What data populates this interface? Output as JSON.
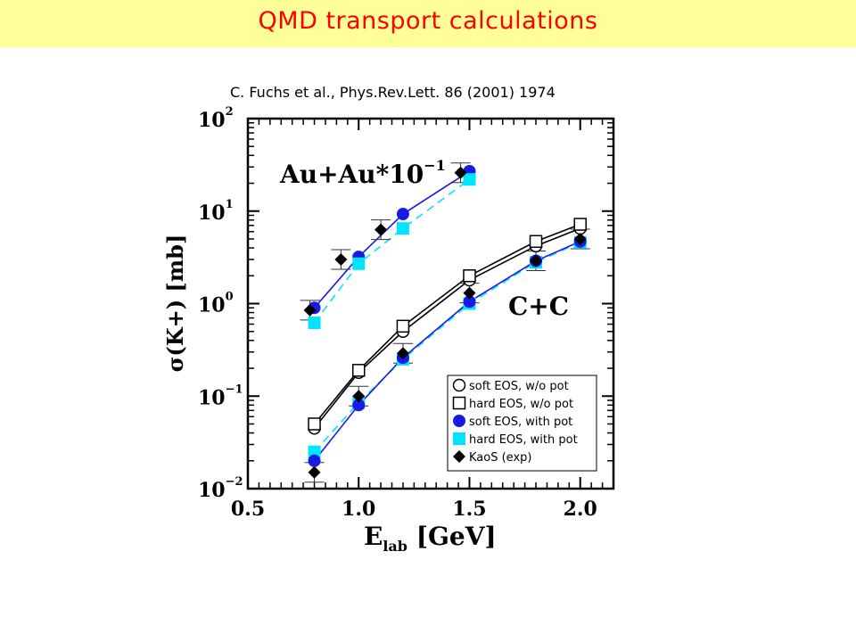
{
  "header": {
    "title": "QMD transport calculations",
    "citation": "C. Fuchs et al., Phys.Rev.Lett. 86 (2001) 1974",
    "banner_color": "#ffff99",
    "title_color": "#ff0000"
  },
  "chart_data": {
    "type": "scatter",
    "xlabel_main": "E",
    "xlabel_sub": "lab",
    "xlabel_rest": " [GeV]",
    "ylabel": "σ(K+) [mb]",
    "x_ticks": [
      "0.5",
      "1.0",
      "1.5",
      "2.0"
    ],
    "y_ticks": [
      {
        "base": "10",
        "exp": "2"
      },
      {
        "base": "10",
        "exp": "1"
      },
      {
        "base": "10",
        "exp": "0"
      },
      {
        "base": "10",
        "exp": "−1"
      },
      {
        "base": "10",
        "exp": "−2"
      }
    ],
    "xlim": [
      0.5,
      2.15
    ],
    "ylim": [
      0.01,
      100
    ],
    "yscale": "log",
    "annotations": {
      "auau_main": "Au+Au*10",
      "auau_exp": "−1",
      "cc": "C+C"
    },
    "legend_position": "bottom-right",
    "legend": [
      {
        "label": "soft EOS, w/o pot",
        "marker": "open-circle",
        "color": "#000000"
      },
      {
        "label": "hard EOS, w/o pot",
        "marker": "open-square",
        "color": "#000000"
      },
      {
        "label": "soft EOS, with pot",
        "marker": "filled-circle",
        "color": "#1a1ae6"
      },
      {
        "label": "hard EOS, with pot",
        "marker": "filled-square",
        "color": "#00e5ff"
      },
      {
        "label": "KaoS (exp)",
        "marker": "filled-diamond",
        "color": "#000000"
      }
    ],
    "series": [
      {
        "id": "cc_soft_nopot",
        "legend": 0,
        "line": "solid",
        "x": [
          0.8,
          1.0,
          1.2,
          1.5,
          1.8,
          2.0
        ],
        "y": [
          0.045,
          0.18,
          0.5,
          1.8,
          4.2,
          6.5
        ]
      },
      {
        "id": "cc_hard_nopot",
        "legend": 1,
        "line": "solid",
        "x": [
          0.8,
          1.0,
          1.2,
          1.5,
          1.8,
          2.0
        ],
        "y": [
          0.05,
          0.19,
          0.57,
          2.0,
          4.7,
          7.2
        ]
      },
      {
        "id": "cc_soft_pot",
        "legend": 2,
        "line": "solid",
        "x": [
          0.8,
          1.0,
          1.2,
          1.5,
          1.8,
          2.0
        ],
        "y": [
          0.02,
          0.08,
          0.26,
          1.05,
          2.9,
          4.7
        ]
      },
      {
        "id": "cc_hard_pot",
        "legend": 3,
        "line": "dashed",
        "x": [
          0.8,
          1.0,
          1.2,
          1.5,
          1.8,
          2.0
        ],
        "y": [
          0.025,
          0.085,
          0.25,
          1.0,
          2.8,
          4.6
        ]
      },
      {
        "id": "cc_kaos",
        "legend": 4,
        "line": "none",
        "x": [
          0.8,
          1.0,
          1.2,
          1.5,
          1.8,
          2.0
        ],
        "y": [
          0.015,
          0.1,
          0.29,
          1.3,
          2.9,
          5.0
        ]
      },
      {
        "id": "auau_soft_pot",
        "legend": 2,
        "line": "solid",
        "x": [
          0.8,
          1.0,
          1.2,
          1.5
        ],
        "y": [
          0.9,
          3.2,
          9.3,
          27
        ]
      },
      {
        "id": "auau_hard_pot",
        "legend": 3,
        "line": "dashed",
        "x": [
          0.8,
          1.0,
          1.2,
          1.5
        ],
        "y": [
          0.62,
          2.7,
          6.5,
          22
        ]
      },
      {
        "id": "auau_kaos",
        "legend": 4,
        "line": "none",
        "x": [
          0.78,
          0.92,
          1.1,
          1.46
        ],
        "y": [
          0.85,
          3.0,
          6.3,
          26
        ]
      }
    ]
  }
}
